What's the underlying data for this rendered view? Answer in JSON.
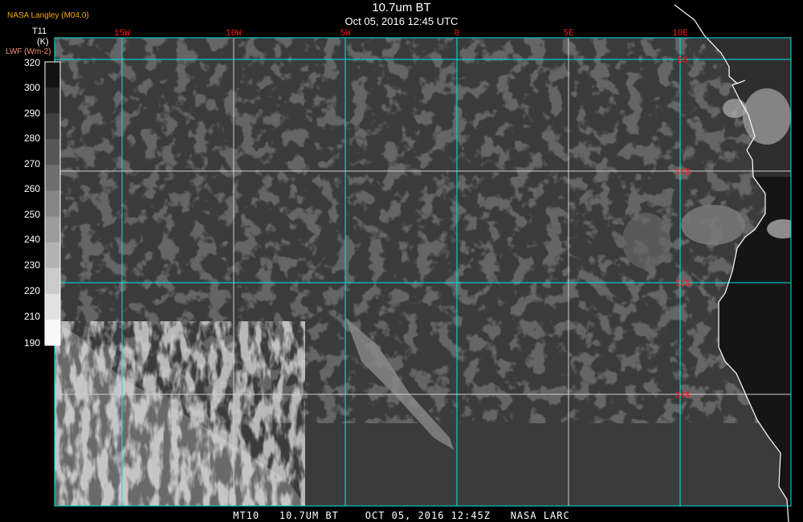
{
  "header": {
    "title": "10.7um BT",
    "subtitle": "Oct 05, 2016 12:45 UTC",
    "credit": "NASA Langley (M04.0)"
  },
  "colorbar": {
    "variable": "T11",
    "unit": "(K)",
    "secondary": "LWF (Wm-2)",
    "labels": [
      "320",
      "300",
      "290",
      "280",
      "270",
      "260",
      "250",
      "240",
      "230",
      "220",
      "210",
      "190"
    ]
  },
  "map": {
    "longitude_labels": [
      "15W",
      "10W",
      "5W",
      "0",
      "5E",
      "10E"
    ],
    "latitude_labels": [
      "5S",
      "10S",
      "15S",
      "20S"
    ],
    "grid_color": "#00e5e5",
    "label_color": "#ff1a1a",
    "coastline_color": "#ffffff"
  },
  "footer": "MT10   10.7UM BT    OCT 05, 2016 12:45Z   NASA LARC"
}
